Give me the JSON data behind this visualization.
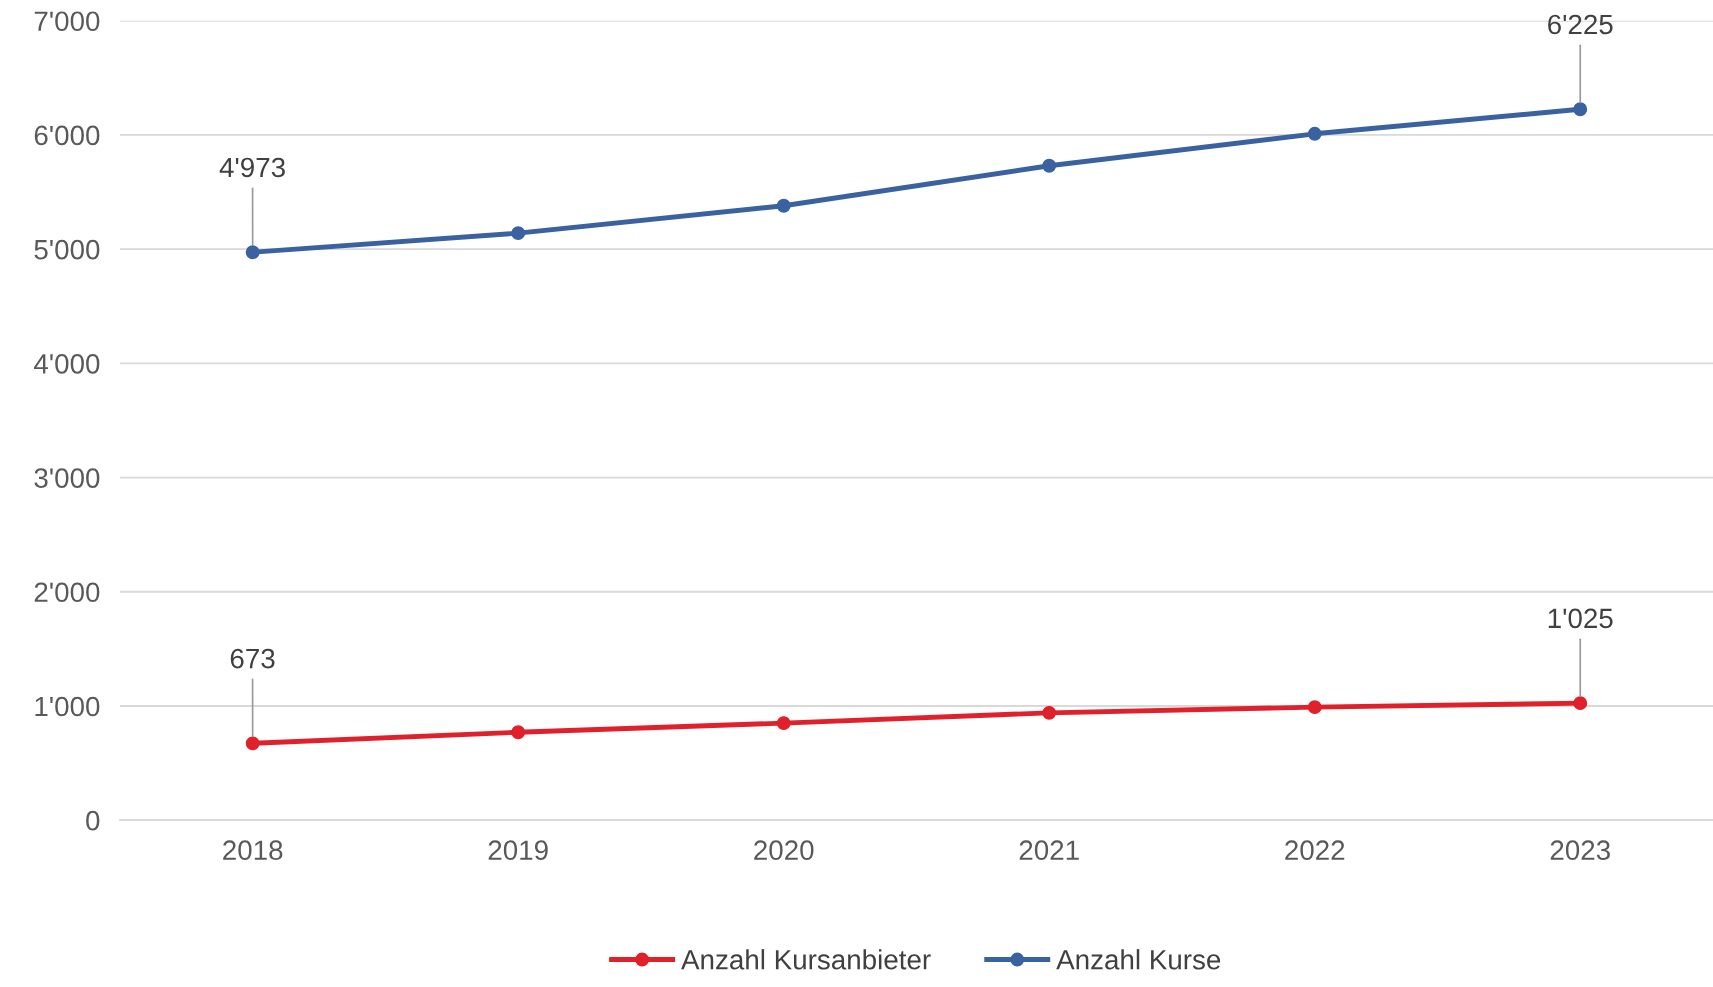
{
  "chart_data": {
    "type": "line",
    "categories": [
      "2018",
      "2019",
      "2020",
      "2021",
      "2022",
      "2023"
    ],
    "series": [
      {
        "name": "Anzahl Kursanbieter",
        "color": "#e0202a",
        "values": [
          673,
          770,
          850,
          940,
          990,
          1025
        ],
        "value_labels": [
          "673",
          null,
          null,
          null,
          null,
          "1'025"
        ]
      },
      {
        "name": "Anzahl Kurse",
        "color": "#3a62a0",
        "values": [
          4973,
          5140,
          5380,
          5730,
          6010,
          6225
        ],
        "value_labels": [
          "4'973",
          null,
          null,
          null,
          null,
          "6'225"
        ]
      }
    ],
    "ylim": [
      0,
      7000
    ],
    "yticks": [
      0,
      {
        "value": 1000,
        "label": "1'000"
      },
      {
        "value": 2000,
        "label": "2'000"
      },
      {
        "value": 3000,
        "label": "3'000"
      },
      {
        "value": 4000,
        "label": "4'000"
      },
      {
        "value": 5000,
        "label": "5'000"
      },
      {
        "value": 6000,
        "label": "6'000"
      },
      {
        "value": 7000,
        "label": "7'000"
      }
    ],
    "grid": "y",
    "legend": "bottom",
    "marker": "circle",
    "line_style": "solid"
  }
}
